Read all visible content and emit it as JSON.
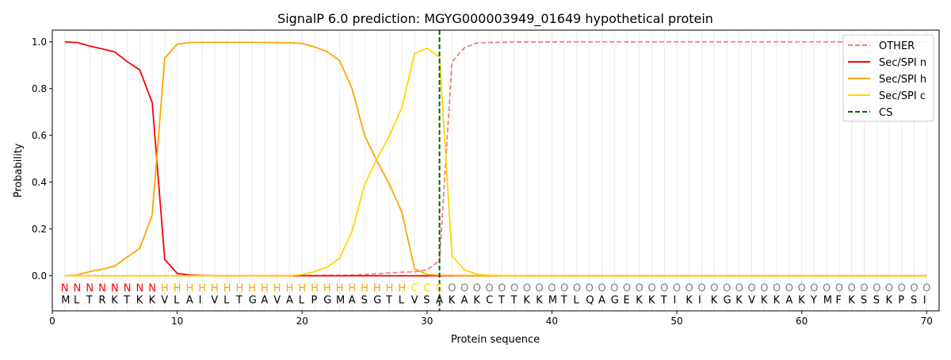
{
  "chart_data": {
    "type": "line",
    "title": "SignalP 6.0 prediction: MGYG000003949_01649 hypothetical protein",
    "xlabel": "Protein sequence",
    "ylabel": "Probability",
    "xlim": [
      0,
      71
    ],
    "ylim": [
      -0.15,
      1.05
    ],
    "xticks": [
      0,
      10,
      20,
      30,
      40,
      50,
      60,
      70
    ],
    "yticks": [
      0.0,
      0.2,
      0.4,
      0.6,
      0.8,
      1.0
    ],
    "grid": "vertical per residue",
    "legend_placement": "top-right",
    "sequence": "MLTRKTKKVLAIVLTGAVALPGMASGTLVSAKAKCTTKKMTLQAGEKKTIKIKGKVKKAKYMFKSSKPSI",
    "labels": "NNNNNNNNHHHHHHHHHHHHHHHHHHHHCCCOOOOOOOOOOOOOOOOOOOOOOOOOOOOOOOOOOOOOOO",
    "label_colors": {
      "N": "#ff0000",
      "H": "#ffa500",
      "C": "#ffd700",
      "O": "#808080"
    },
    "cleavage_site": 31,
    "series": [
      {
        "name": "OTHER",
        "color": "#f08080",
        "dash": true,
        "values": [
          0,
          0,
          0,
          0,
          0,
          0,
          0,
          0,
          0,
          0,
          0,
          0,
          0,
          0,
          0,
          0,
          0,
          0,
          0,
          0.001,
          0.001,
          0.002,
          0.002,
          0.003,
          0.005,
          0.008,
          0.012,
          0.015,
          0.017,
          0.025,
          0.065,
          0.915,
          0.975,
          0.995,
          0.997,
          0.998,
          0.999,
          0.999,
          0.999,
          0.999,
          1,
          1,
          1,
          1,
          1,
          1,
          1,
          1,
          1,
          1,
          1,
          1,
          1,
          1,
          1,
          1,
          1,
          1,
          1,
          1,
          1,
          1,
          1,
          1,
          1,
          1,
          1,
          1,
          1,
          1
        ]
      },
      {
        "name": "Sec/SPI n",
        "color": "#ff0000",
        "values": [
          1.0,
          0.997,
          0.982,
          0.97,
          0.957,
          0.915,
          0.88,
          0.74,
          0.07,
          0.01,
          0.003,
          0.001,
          0,
          0,
          0,
          0,
          0,
          0,
          0,
          0,
          0,
          0,
          0,
          0,
          0,
          0,
          0,
          0,
          0,
          0,
          0,
          0,
          0,
          0,
          0,
          0,
          0,
          0,
          0,
          0,
          0,
          0,
          0,
          0,
          0,
          0,
          0,
          0,
          0,
          0,
          0,
          0,
          0,
          0,
          0,
          0,
          0,
          0,
          0,
          0,
          0,
          0,
          0,
          0,
          0,
          0,
          0,
          0,
          0,
          0
        ]
      },
      {
        "name": "Sec/SPI h",
        "color": "#ffa500",
        "values": [
          0,
          0.003,
          0.018,
          0.028,
          0.042,
          0.08,
          0.117,
          0.26,
          0.93,
          0.99,
          0.997,
          0.998,
          0.998,
          0.998,
          0.998,
          0.998,
          0.997,
          0.997,
          0.996,
          0.993,
          0.978,
          0.958,
          0.92,
          0.8,
          0.6,
          0.49,
          0.39,
          0.27,
          0.03,
          0.005,
          0.002,
          0.001,
          0,
          0,
          0,
          0,
          0,
          0,
          0,
          0,
          0,
          0,
          0,
          0,
          0,
          0,
          0,
          0,
          0,
          0,
          0,
          0,
          0,
          0,
          0,
          0,
          0,
          0,
          0,
          0,
          0,
          0,
          0,
          0,
          0,
          0,
          0,
          0,
          0,
          0
        ]
      },
      {
        "name": "Sec/SPI c",
        "color": "#ffd700",
        "values": [
          0,
          0,
          0,
          0,
          0,
          0,
          0,
          0,
          0,
          0,
          0,
          0,
          0,
          0,
          0,
          0,
          0,
          0,
          0,
          0.005,
          0.018,
          0.037,
          0.075,
          0.19,
          0.39,
          0.5,
          0.6,
          0.72,
          0.95,
          0.973,
          0.935,
          0.085,
          0.025,
          0.006,
          0.002,
          0.001,
          0,
          0,
          0,
          0,
          0,
          0,
          0,
          0,
          0,
          0,
          0,
          0,
          0,
          0,
          0,
          0,
          0,
          0,
          0,
          0,
          0,
          0,
          0,
          0,
          0,
          0,
          0,
          0,
          0,
          0,
          0,
          0,
          0,
          0
        ]
      },
      {
        "name": "CS",
        "color": "#006400",
        "dash": true,
        "vertical_at": 31
      }
    ]
  }
}
